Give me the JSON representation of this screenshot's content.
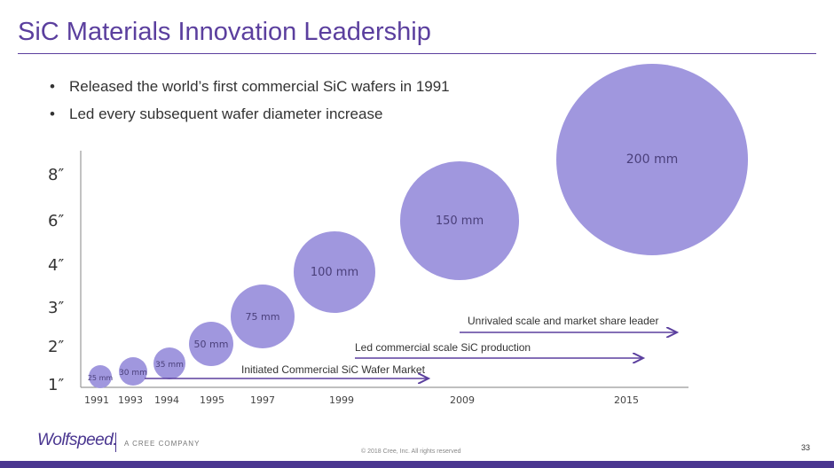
{
  "title": "SiC Materials Innovation Leadership",
  "bullets": [
    "Released the world’s first commercial SiC wafers in 1991",
    "Led every subsequent wafer diameter increase"
  ],
  "colors": {
    "accent": "#5b3f9e",
    "bubble": "#a097de",
    "arrow": "#5b3f9e"
  },
  "chart_data": {
    "type": "scatter",
    "title": "",
    "y_tick_labels": [
      "1″",
      "2″",
      "3″",
      "4″",
      "6″",
      "8″"
    ],
    "x_tick_labels": [
      "1991",
      "1993",
      "1994",
      "1995",
      "1997",
      "1999",
      "2009",
      "2015"
    ],
    "points": [
      {
        "year": "1991",
        "diameter_in": 1,
        "label": "25 mm"
      },
      {
        "year": "1993",
        "diameter_in": 1.2,
        "label": "30 mm"
      },
      {
        "year": "1994",
        "diameter_in": 1.4,
        "label": "35 mm"
      },
      {
        "year": "1995",
        "diameter_in": 2,
        "label": "50 mm"
      },
      {
        "year": "1997",
        "diameter_in": 3,
        "label": "75 mm"
      },
      {
        "year": "1999",
        "diameter_in": 4,
        "label": "100 mm"
      },
      {
        "year": "2009",
        "diameter_in": 6,
        "label": "150 mm"
      },
      {
        "year": "2015",
        "diameter_in": 8,
        "label": "200 mm"
      }
    ],
    "annotations": [
      "Initiated Commercial SiC Wafer Market",
      "Led commercial scale SiC production",
      "Unrivaled scale and market share leader"
    ]
  },
  "footer": {
    "logo": "Wolfspeed.",
    "tagline": "A CREE COMPANY",
    "copyright": "© 2018 Cree, Inc. All rights reserved",
    "page_number": "33"
  }
}
